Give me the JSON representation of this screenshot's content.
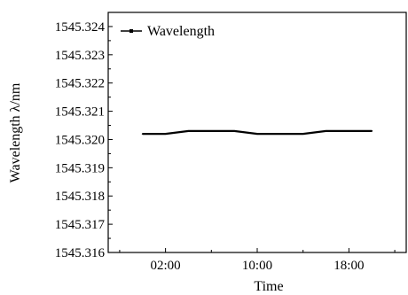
{
  "chart_data": {
    "type": "line",
    "xlabel": "Time",
    "ylabel": "Wavelength λ/nm",
    "x_tick_labels": [
      "02:00",
      "10:00",
      "18:00"
    ],
    "x_ticks_hours": [
      2,
      10,
      18
    ],
    "xlim_hours": [
      -3,
      23
    ],
    "ylim": [
      1545.316,
      1545.3245
    ],
    "y_ticks": [
      1545.316,
      1545.317,
      1545.318,
      1545.319,
      1545.32,
      1545.321,
      1545.322,
      1545.323,
      1545.324
    ],
    "y_tick_labels": [
      "1545.316",
      "1545.317",
      "1545.318",
      "1545.319",
      "1545.320",
      "1545.321",
      "1545.322",
      "1545.323",
      "1545.324"
    ],
    "legend_position": "top-left",
    "grid": false,
    "series": [
      {
        "name": "Wavelength",
        "color": "#000000",
        "x_hours": [
          0,
          2,
          4,
          6,
          8,
          10,
          12,
          14,
          16,
          18,
          20
        ],
        "values": [
          1545.3202,
          1545.3202,
          1545.3203,
          1545.3203,
          1545.3203,
          1545.3202,
          1545.3202,
          1545.3202,
          1545.3203,
          1545.3203,
          1545.3203
        ]
      }
    ]
  }
}
